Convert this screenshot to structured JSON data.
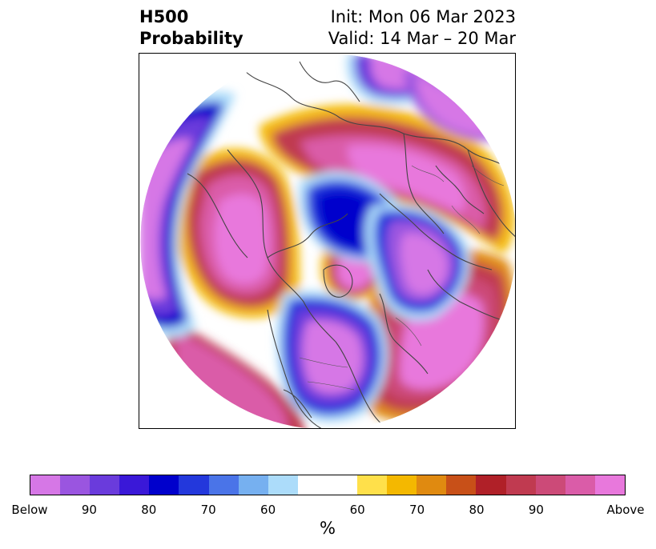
{
  "header": {
    "title_line1": "H500",
    "title_line2": "Probability",
    "init_text": "Init: Mon 06 Mar 2023",
    "valid_text": "Valid: 14 Mar – 20 Mar"
  },
  "colorbar": {
    "swatches": [
      {
        "color": "#d677e6"
      },
      {
        "color": "#9a55e0"
      },
      {
        "color": "#6a3bdc"
      },
      {
        "color": "#3a18d8"
      },
      {
        "color": "#0000cc"
      },
      {
        "color": "#2338dc"
      },
      {
        "color": "#4a74e8"
      },
      {
        "color": "#76b0f0"
      },
      {
        "color": "#acdcfa"
      },
      {
        "color": "#ffffff"
      },
      {
        "color": "#ffe04a"
      },
      {
        "color": "#f4b800"
      },
      {
        "color": "#e08a10"
      },
      {
        "color": "#c85018"
      },
      {
        "color": "#b02028"
      },
      {
        "color": "#c03a50"
      },
      {
        "color": "#cc4a78"
      },
      {
        "color": "#da5ca8"
      },
      {
        "color": "#e878dc"
      }
    ],
    "tick_labels": [
      "Below",
      "90",
      "80",
      "70",
      "60",
      "60",
      "70",
      "80",
      "90",
      "Above"
    ],
    "units_label": "%"
  },
  "map": {
    "projection": "north-polar-stereographic",
    "field": "500 hPa height anomaly probability",
    "features": [
      {
        "name": "below-anomaly-eastern-siberia",
        "category": "below"
      },
      {
        "name": "below-anomaly-north-america",
        "category": "below"
      },
      {
        "name": "below-anomaly-north-atlantic",
        "category": "below"
      },
      {
        "name": "below-anomaly-north-pacific",
        "category": "below"
      },
      {
        "name": "above-anomaly-eurasia",
        "category": "above"
      },
      {
        "name": "above-anomaly-alaska-arctic",
        "category": "above"
      },
      {
        "name": "above-anomaly-greenland",
        "category": "above"
      },
      {
        "name": "above-anomaly-atlantic-europe",
        "category": "above"
      }
    ]
  }
}
